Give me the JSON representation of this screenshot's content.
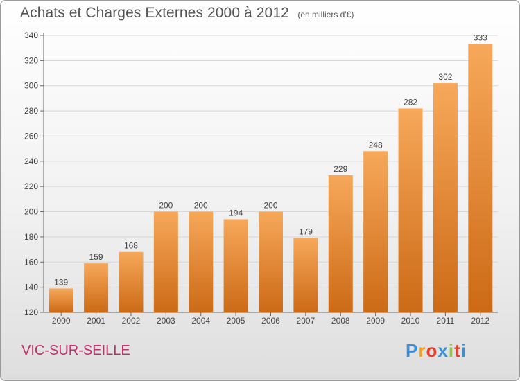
{
  "header": {
    "title": "Achats et Charges Externes 2000 à 2012",
    "unit": "(en milliers d'€)"
  },
  "footer": {
    "commune": "VIC-SUR-SEILLE",
    "logo_letters": [
      "P",
      "r",
      "o",
      "x",
      "i",
      "t",
      "i"
    ],
    "logo_colors": [
      "#3a8fd8",
      "#f2a21c",
      "#e8402c",
      "#3a8fd8",
      "#8cc63f",
      "#e8402c",
      "#3a8fd8"
    ]
  },
  "colors": {
    "bar_top": "#f7a85a",
    "bar_bottom": "#cc6a16",
    "grid": "#d6d6d6",
    "axis": "#666666",
    "text": "#444444"
  },
  "chart_data": {
    "type": "bar",
    "categories": [
      "2000",
      "2001",
      "2002",
      "2003",
      "2004",
      "2005",
      "2006",
      "2007",
      "2008",
      "2009",
      "2010",
      "2011",
      "2012"
    ],
    "values": [
      139,
      159,
      168,
      200,
      200,
      194,
      200,
      179,
      229,
      248,
      282,
      302,
      333
    ],
    "title": "Achats et Charges Externes 2000 à 2012",
    "subtitle": "(en milliers d'€)",
    "ylim": [
      120,
      340
    ],
    "yticks": [
      120,
      140,
      160,
      180,
      200,
      220,
      240,
      260,
      280,
      300,
      320,
      340
    ],
    "grid": true,
    "data_labels": true
  }
}
